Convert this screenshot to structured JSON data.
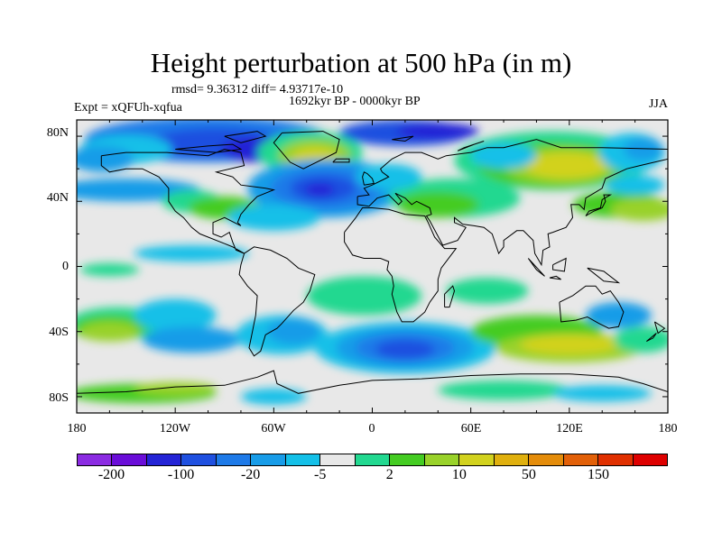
{
  "map": {
    "title": "Height perturbation at 500 hPa (in m)",
    "stats": "rmsd= 9.36312 diff= 4.93717e-10",
    "period": "1692kyr BP - 0000kyr BP",
    "experiment": "Expt = xQFUh-xqfua",
    "season": "JJA",
    "lat_ticks": [
      "80N",
      "40N",
      "0",
      "40S",
      "80S"
    ],
    "lon_ticks": [
      "180",
      "120W",
      "60W",
      "0",
      "60E",
      "120E",
      "180"
    ],
    "lat_range": [
      -90,
      90
    ],
    "lon_range": [
      -180,
      180
    ]
  },
  "legend": {
    "colors": [
      "#8b2be2",
      "#6a0dd8",
      "#2424d6",
      "#1f50e0",
      "#1e7ae8",
      "#189ce8",
      "#14c0e8",
      "#e8e8e8",
      "#22d890",
      "#44cc22",
      "#99d22a",
      "#d2d21e",
      "#e0b00e",
      "#e48c0a",
      "#e26008",
      "#e03000",
      "#de0000"
    ],
    "labels": [
      "-200",
      "-100",
      "-20",
      "-5",
      "2",
      "10",
      "50",
      "150"
    ],
    "label_positions": [
      1,
      3,
      5,
      7,
      9,
      11,
      13,
      15
    ]
  },
  "style": {
    "land_outline": "#000000",
    "neutral_fill": "#e8e8e8"
  }
}
